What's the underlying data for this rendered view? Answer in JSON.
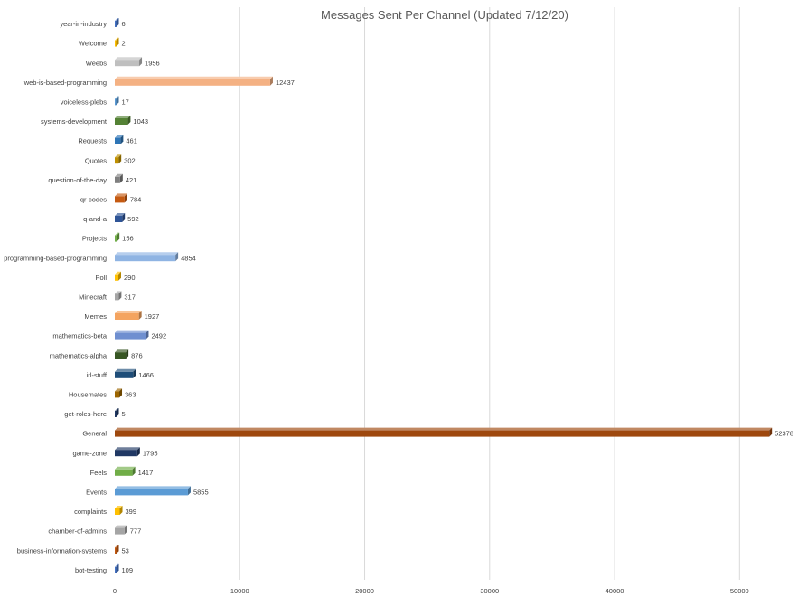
{
  "chart_data": {
    "type": "bar",
    "orientation": "horizontal",
    "style": "3d-bars",
    "title": "Messages Sent Per Channel (Updated 7/12/20)",
    "xlabel": "",
    "ylabel": "",
    "xlim": [
      0,
      55000
    ],
    "x_ticks": [
      "0",
      "10000",
      "20000",
      "30000",
      "40000",
      "50000"
    ],
    "x_tick_values": [
      0,
      10000,
      20000,
      30000,
      40000,
      50000
    ],
    "grid": "vertical",
    "legend": "none",
    "categories": [
      "year-in-industry",
      "Welcome",
      "Weebs",
      "web-is-based-programming",
      "voiceless-plebs",
      "systems-development",
      "Requests",
      "Quotes",
      "question-of-the-day",
      "qr-codes",
      "q-and-a",
      "Projects",
      "programming-based-programming",
      "Poll",
      "Minecraft",
      "Memes",
      "mathematics-beta",
      "mathematics-alpha",
      "irl-stuff",
      "Housemates",
      "get-roles-here",
      "General",
      "game-zone",
      "Feels",
      "Events",
      "complaints",
      "chamber-of-admins",
      "business-information-systems",
      "bot-testing"
    ],
    "values": [
      6,
      2,
      1956,
      12437,
      17,
      1043,
      461,
      302,
      421,
      784,
      592,
      156,
      4854,
      290,
      317,
      1927,
      2492,
      876,
      1466,
      363,
      5,
      52378,
      1795,
      1417,
      5855,
      399,
      777,
      53,
      109
    ],
    "value_labels": [
      "6",
      "2",
      "1956",
      "12437",
      "17",
      "1043",
      "461",
      "302",
      "421",
      "784",
      "592",
      "156",
      "4854",
      "290",
      "317",
      "1927",
      "2492",
      "876",
      "1466",
      "363",
      "5",
      "52378",
      "1795",
      "1417",
      "5855",
      "399",
      "777",
      "53",
      "109"
    ],
    "colors": [
      "#4472c4",
      "#ffc000",
      "#bfbfbf",
      "#f4b183",
      "#5b9bd5",
      "#548235",
      "#2e75b6",
      "#bf9000",
      "#7f7f7f",
      "#c55a11",
      "#2f5597",
      "#70ad47",
      "#8fb4e3",
      "#ffc000",
      "#a5a5a5",
      "#f4a460",
      "#6f8fd0",
      "#375623",
      "#1f4e79",
      "#9c6500",
      "#203864",
      "#9e480e",
      "#203864",
      "#70ad47",
      "#5b9bd5",
      "#ffc000",
      "#a5a5a5",
      "#c55a11",
      "#4472c4"
    ]
  }
}
